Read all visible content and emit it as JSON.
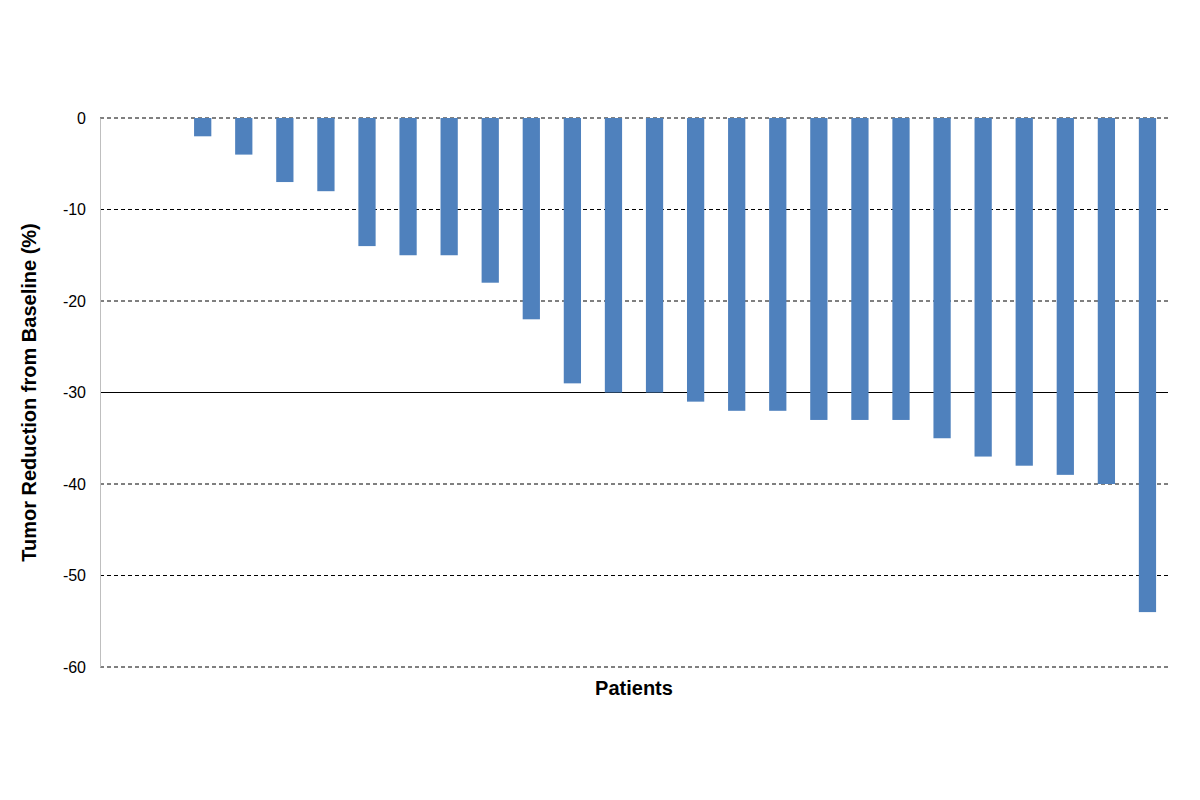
{
  "chart_data": {
    "type": "bar",
    "x_label": "Patients",
    "y_label": "Tumor Reduction from Baseline (%)",
    "categories": [
      null,
      null,
      null,
      null,
      null,
      null,
      null,
      null,
      null,
      null,
      null,
      null,
      null,
      null,
      null,
      null,
      null,
      null,
      null,
      null,
      null,
      null,
      null,
      null,
      null,
      null
    ],
    "values": [
      0,
      0,
      -2,
      -4,
      -7,
      -8,
      -14,
      -15,
      -15,
      -18,
      -22,
      -29,
      -30,
      -30,
      -31,
      -32,
      -32,
      -33,
      -33,
      -33,
      -35,
      -37,
      -38,
      -39,
      -40,
      -54
    ],
    "color": "#4f81bd",
    "ylim": [
      -60,
      0
    ],
    "yticks": [
      -60,
      -50,
      -40,
      -30,
      -20,
      -10,
      0
    ],
    "reference_line": -30,
    "grid": true,
    "tick_labels": "y"
  }
}
